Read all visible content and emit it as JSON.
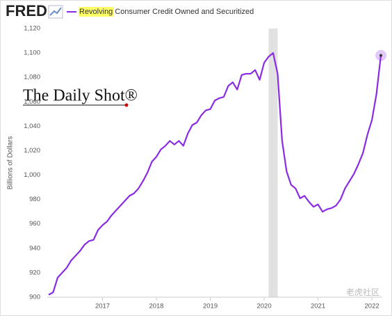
{
  "logo": "FRED",
  "watermarks": [
    "The Daily Shot®",
    "老虎社区"
  ],
  "chart_data": {
    "type": "line",
    "ylabel": "Billions of Dollars",
    "x": [
      "2016-01",
      "2016-02",
      "2016-03",
      "2016-04",
      "2016-05",
      "2016-06",
      "2016-07",
      "2016-08",
      "2016-09",
      "2016-10",
      "2016-11",
      "2016-12",
      "2017-01",
      "2017-02",
      "2017-03",
      "2017-04",
      "2017-05",
      "2017-06",
      "2017-07",
      "2017-08",
      "2017-09",
      "2017-10",
      "2017-11",
      "2017-12",
      "2018-01",
      "2018-02",
      "2018-03",
      "2018-04",
      "2018-05",
      "2018-06",
      "2018-07",
      "2018-08",
      "2018-09",
      "2018-10",
      "2018-11",
      "2018-12",
      "2019-01",
      "2019-02",
      "2019-03",
      "2019-04",
      "2019-05",
      "2019-06",
      "2019-07",
      "2019-08",
      "2019-09",
      "2019-10",
      "2019-11",
      "2019-12",
      "2020-01",
      "2020-02",
      "2020-03",
      "2020-04",
      "2020-05",
      "2020-06",
      "2020-07",
      "2020-08",
      "2020-09",
      "2020-10",
      "2020-11",
      "2020-12",
      "2021-01",
      "2021-02",
      "2021-03",
      "2021-04",
      "2021-05",
      "2021-06",
      "2021-07",
      "2021-08",
      "2021-09",
      "2021-10",
      "2021-11",
      "2021-12",
      "2022-01",
      "2022-02",
      "2022-03"
    ],
    "series": [
      {
        "name": "Revolving Consumer Credit Owned and Securitized",
        "color": "#8a2be2",
        "values": [
          902,
          904,
          916,
          920,
          924,
          930,
          934,
          938,
          943,
          946,
          947,
          955,
          959,
          962,
          967,
          971,
          975,
          979,
          983,
          985,
          989,
          995,
          1002,
          1011,
          1015,
          1021,
          1024,
          1028,
          1025,
          1028,
          1024,
          1034,
          1041,
          1043,
          1049,
          1053,
          1054,
          1061,
          1063,
          1064,
          1073,
          1076,
          1070,
          1082,
          1083,
          1083,
          1086,
          1078,
          1092,
          1097,
          1100,
          1083,
          1028,
          1003,
          992,
          989,
          981,
          983,
          978,
          974,
          976,
          970,
          972,
          973,
          975,
          980,
          989,
          995,
          1001,
          1009,
          1018,
          1033,
          1045,
          1066,
          1098
        ]
      }
    ],
    "recession": [
      "2020-02",
      "2020-04"
    ],
    "xlim": [
      "2016-01",
      "2022-03"
    ],
    "xticks": [
      {
        "value": "2017-01",
        "label": "2017"
      },
      {
        "value": "2018-01",
        "label": "2018"
      },
      {
        "value": "2019-01",
        "label": "2019"
      },
      {
        "value": "2020-01",
        "label": "2020"
      },
      {
        "value": "2021-01",
        "label": "2021"
      },
      {
        "value": "2022-01",
        "label": "2022"
      }
    ],
    "ylim": [
      900,
      1120
    ],
    "yticks": [
      900,
      920,
      940,
      960,
      980,
      {
        "value": 1000,
        "label": "1,000"
      },
      {
        "value": 1020,
        "label": "1,020"
      },
      {
        "value": 1040,
        "label": "1,040"
      },
      {
        "value": 1060,
        "label": "1,060"
      },
      {
        "value": 1080,
        "label": "1,080"
      },
      {
        "value": 1100,
        "label": "1,100"
      },
      {
        "value": 1120,
        "label": "1,120"
      }
    ],
    "grid": false
  }
}
